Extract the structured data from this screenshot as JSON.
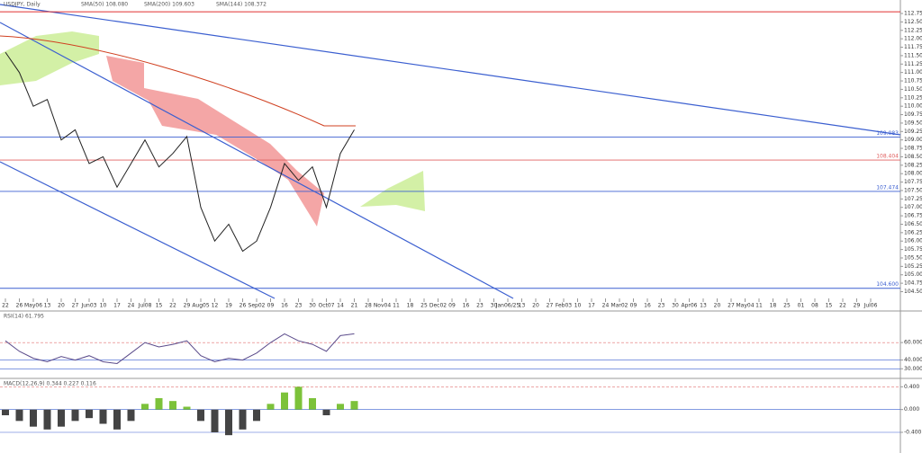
{
  "header": {
    "symbol": "USDJPY, Daily",
    "sma50": "SMA(50) 108.080",
    "sma200": "SMA(200) 109.603",
    "sma144": "SMA(144) 108.372"
  },
  "chart_data": [
    {
      "type": "line",
      "name": "USDJPY",
      "color": "#222",
      "categories": [
        "22",
        "26",
        "May06",
        "13",
        "20",
        "27",
        "Jun03",
        "10",
        "17",
        "24",
        "Jul08",
        "15",
        "22",
        "29",
        "Aug05",
        "12",
        "19",
        "26",
        "Sep02",
        "09",
        "16",
        "23",
        "30",
        "Oct07",
        "14",
        "21",
        "28",
        "Nov04",
        "11",
        "18",
        "25",
        "Dec02",
        "09",
        "16",
        "23",
        "30",
        "Jan06/25",
        "13",
        "20",
        "27",
        "Feb03",
        "10",
        "17",
        "24",
        "Mar02",
        "09",
        "16",
        "23",
        "30",
        "Apr06",
        "13",
        "20",
        "27",
        "May04",
        "11",
        "18",
        "25",
        "01",
        "08",
        "15",
        "22",
        "29",
        "Jul06"
      ],
      "values": [
        111.6,
        111.0,
        110.0,
        110.2,
        109.0,
        109.3,
        108.3,
        108.5,
        107.6,
        108.3,
        109.0,
        108.2,
        108.6,
        109.1,
        107.0,
        106.0,
        106.5,
        105.7,
        106.0,
        107.0,
        108.3,
        107.8,
        108.2,
        107.0,
        108.6,
        109.3,
        null,
        null,
        null,
        null,
        null,
        null,
        null,
        null,
        null,
        null,
        null,
        null,
        null,
        null,
        null,
        null,
        null,
        null,
        null,
        null,
        null,
        null,
        null,
        null,
        null,
        null,
        null,
        null,
        null,
        null,
        null,
        null,
        null,
        null,
        null,
        null,
        null
      ],
      "ylim": [
        104.3,
        113.15
      ],
      "yticks": [
        {
          "value": 104.5,
          "label": "104.500"
        },
        {
          "value": 104.75,
          "label": "104.750"
        },
        {
          "value": 105,
          "label": "105.000"
        },
        {
          "value": 105.25,
          "label": "105.250"
        },
        {
          "value": 105.5,
          "label": "105.500"
        },
        {
          "value": 105.75,
          "label": "105.750"
        },
        {
          "value": 106,
          "label": "106.000"
        },
        {
          "value": 106.25,
          "label": "106.250"
        },
        {
          "value": 106.5,
          "label": "106.500"
        },
        {
          "value": 106.75,
          "label": "106.750"
        },
        {
          "value": 107,
          "label": "107.000"
        },
        {
          "value": 107.25,
          "label": "107.250"
        },
        {
          "value": 107.5,
          "label": "107.500"
        },
        {
          "value": 107.75,
          "label": "107.750"
        },
        {
          "value": 108,
          "label": "108.000"
        },
        {
          "value": 108.25,
          "label": "108.250"
        },
        {
          "value": 108.5,
          "label": "108.500"
        },
        {
          "value": 108.75,
          "label": "108.750"
        },
        {
          "value": 109,
          "label": "109.000"
        },
        {
          "value": 109.25,
          "label": "109.250"
        },
        {
          "value": 109.5,
          "label": "109.500"
        },
        {
          "value": 109.75,
          "label": "109.750"
        },
        {
          "value": 110,
          "label": "110.000"
        },
        {
          "value": 110.25,
          "label": "110.250"
        },
        {
          "value": 110.5,
          "label": "110.500"
        },
        {
          "value": 110.75,
          "label": "110.750"
        },
        {
          "value": 111,
          "label": "111.000"
        },
        {
          "value": 111.25,
          "label": "111.250"
        },
        {
          "value": 111.5,
          "label": "111.500"
        },
        {
          "value": 111.75,
          "label": "111.750"
        },
        {
          "value": 112,
          "label": "112.000"
        },
        {
          "value": 112.25,
          "label": "112.250"
        },
        {
          "value": 112.5,
          "label": "112.500"
        },
        {
          "value": 112.75,
          "label": "112.750"
        }
      ],
      "hlines": [
        {
          "value": 112.8,
          "color": "#e03030"
        },
        {
          "value": 109.083,
          "label": "109.083",
          "color": "#3b5fd0"
        },
        {
          "value": 108.404,
          "label": "108.404",
          "color": "#e06060"
        },
        {
          "value": 107.474,
          "label": "107.474",
          "color": "#3b5fd0"
        },
        {
          "value": 104.6,
          "label": "104.600",
          "color": "#3b5fd0"
        }
      ]
    },
    {
      "type": "line",
      "title": "RSI(14) 61.795",
      "color": "#5a4a8a",
      "values": [
        62,
        50,
        42,
        38,
        44,
        40,
        45,
        38,
        36,
        48,
        60,
        55,
        58,
        62,
        45,
        38,
        42,
        40,
        48,
        60,
        70,
        62,
        58,
        50,
        68,
        70,
        null,
        null,
        null,
        null,
        null,
        null,
        null,
        null,
        null,
        null,
        null,
        null,
        null,
        null,
        null,
        null,
        null,
        null,
        null,
        null,
        null,
        null,
        null,
        null,
        null,
        null,
        null,
        null,
        null,
        null,
        null,
        null,
        null,
        null,
        null,
        null,
        null
      ],
      "ylim": [
        20,
        90
      ],
      "yticks": [
        {
          "value": 60,
          "label": "60.000"
        },
        {
          "value": 40,
          "label": "40.000"
        },
        {
          "value": 30,
          "label": "30.000"
        }
      ]
    },
    {
      "type": "bar",
      "title": "MACD(12,26,9) 0.344 0.227 0.116",
      "colors": [
        "#7cc23a",
        "#444"
      ],
      "values": [
        -0.1,
        -0.2,
        -0.3,
        -0.35,
        -0.3,
        -0.2,
        -0.15,
        -0.25,
        -0.35,
        -0.2,
        0.1,
        0.2,
        0.15,
        0.05,
        -0.2,
        -0.4,
        -0.45,
        -0.35,
        -0.2,
        0.1,
        0.3,
        0.4,
        0.2,
        -0.1,
        0.1,
        0.15,
        null,
        null,
        null,
        null,
        null,
        null,
        null,
        null,
        null,
        null,
        null,
        null,
        null,
        null,
        null,
        null,
        null,
        null,
        null,
        null,
        null,
        null,
        null,
        null,
        null,
        null,
        null,
        null,
        null,
        null,
        null,
        null,
        null,
        null,
        null,
        null,
        null
      ],
      "ylim": [
        -0.7,
        0.5
      ],
      "yticks": [
        {
          "value": 0.4,
          "label": "0.400"
        },
        {
          "value": 0,
          "label": "0.000"
        },
        {
          "value": -0.4,
          "label": "-0.400"
        }
      ]
    }
  ]
}
